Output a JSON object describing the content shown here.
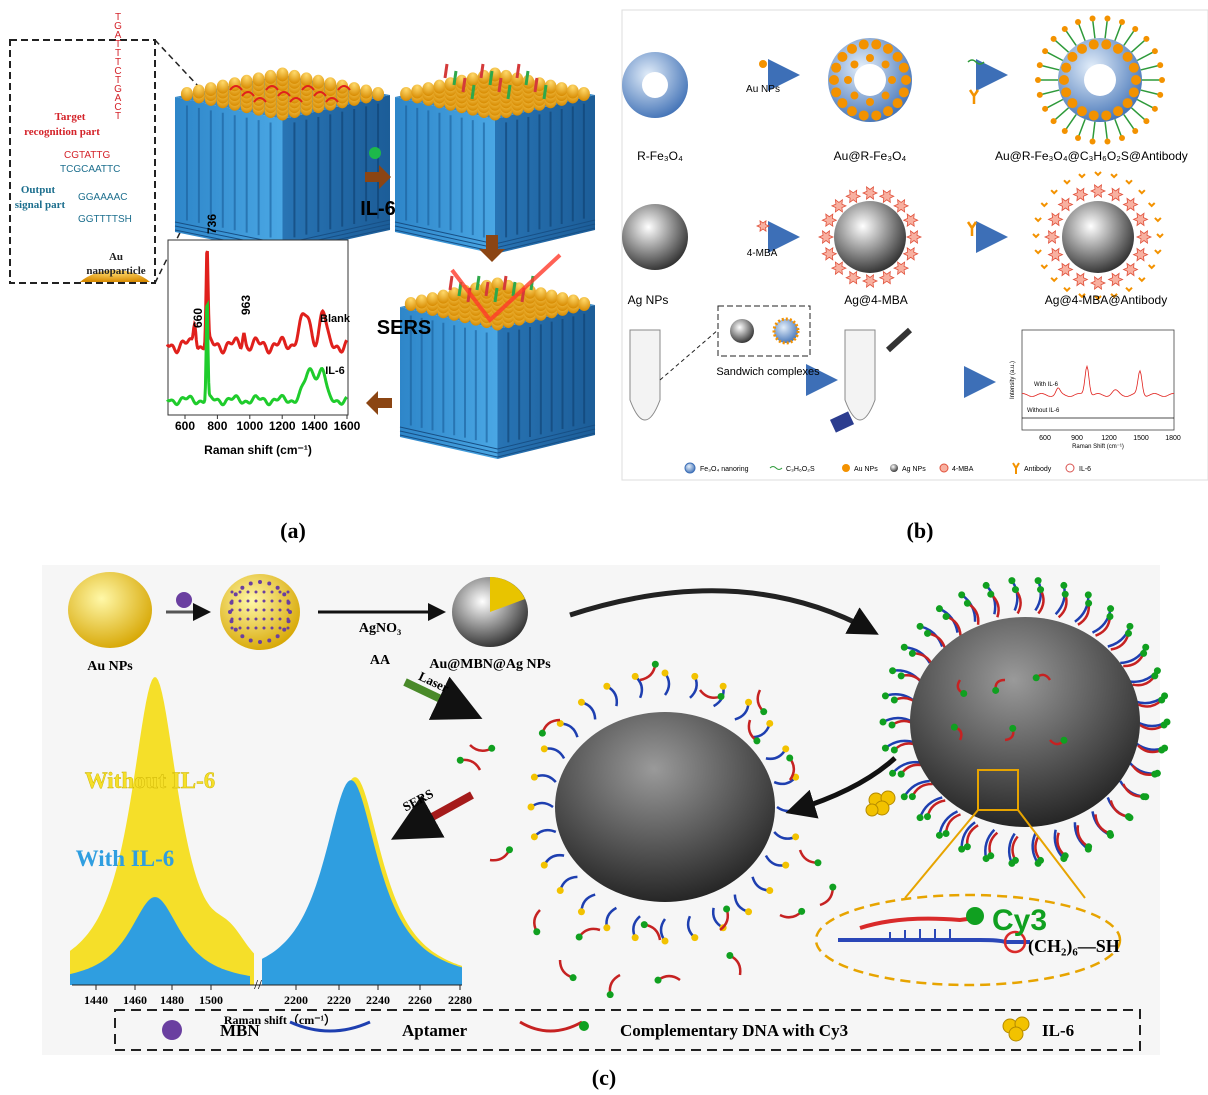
{
  "panel_a": {
    "label": "(a)",
    "target_recognition_part": [
      "Target",
      "recognition part"
    ],
    "output_signal_part": [
      "Output",
      "signal part"
    ],
    "dna_sequence": [
      "TGATTTCTGACT",
      "CGTATTG",
      "TCGCAATTC",
      "GGAAAAC",
      "GGTTTTSH"
    ],
    "nanoparticle": [
      "Au",
      "nanoparticle"
    ],
    "analyte": "IL-6",
    "technique": "SERS",
    "spectrum": {
      "peaks": [
        "736",
        "660",
        "963"
      ],
      "traces": [
        "Blank",
        "IL-6"
      ],
      "x_ticks": [
        "600",
        "800",
        "1000",
        "1200",
        "1400",
        "1600"
      ],
      "x_label": "Raman shift (cm⁻¹)"
    }
  },
  "panel_b": {
    "label": "(b)",
    "step_1": {
      "reagent": "Au NPs",
      "start": "R-Fe₃O₄",
      "middle": "Au@R-Fe₃O₄",
      "end": "Au@R-Fe₃O₄@C₃H₆O₂S@Antibody"
    },
    "step_2": {
      "reagent": "4-MBA",
      "start": "Ag NPs",
      "middle": "Ag@4-MBA",
      "end": "Ag@4-MBA@Antibody"
    },
    "step_3": "Sandwich complexes",
    "inset": {
      "y_label": "Intensity (a.u.)",
      "traces": [
        "With IL-6",
        "Without IL-6"
      ],
      "x_ticks": [
        "600",
        "900",
        "1200",
        "1500",
        "1800"
      ],
      "x_label": "Raman Shift (cm⁻¹)"
    },
    "legend": [
      "Fe₃O₄ nanoring",
      "C₃H₆O₂S",
      "Au NPs",
      "Ag NPs",
      "4-MBA",
      "Antibody",
      "IL-6"
    ]
  },
  "panel_c": {
    "label": "(c)",
    "start": "Au NPs",
    "reagents": [
      "AgNO₃",
      "AA"
    ],
    "product": "Au@MBN@Ag NPs",
    "laser": "Laser",
    "sers": "SERS",
    "spectrum": {
      "traces": [
        "Without IL-6",
        "With IL-6"
      ],
      "x_ticks": [
        "1440",
        "1460",
        "1480",
        "1500",
        "2200",
        "2220",
        "2240",
        "2260",
        "2280"
      ],
      "x_label": "Raman shift（cm⁻¹）"
    },
    "zoom": {
      "dye": "Cy3",
      "linker": "(CH₂)₆—SH"
    },
    "legend": [
      "MBN",
      "Aptamer",
      "Complementary DNA with Cy3",
      "IL-6"
    ]
  }
}
